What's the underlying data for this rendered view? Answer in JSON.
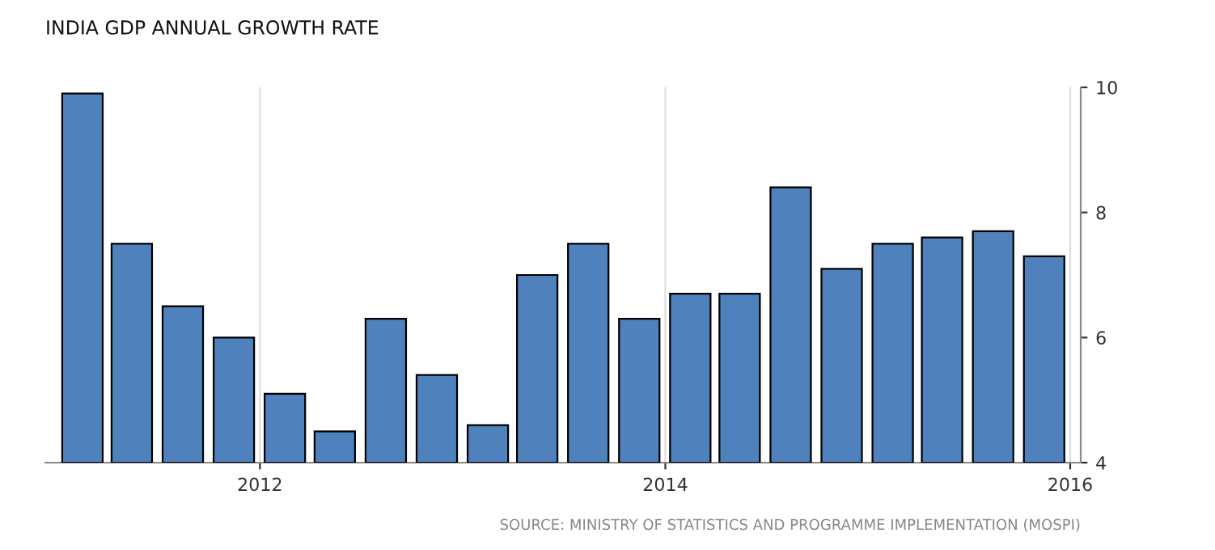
{
  "chart_data": {
    "type": "bar",
    "title": "INDIA GDP ANNUAL GROWTH RATE",
    "x": [
      "2011-02-15",
      "2011-05-15",
      "2011-08-15",
      "2011-11-15",
      "2012-02-15",
      "2012-05-15",
      "2012-08-15",
      "2012-11-15",
      "2013-02-15",
      "2013-05-15",
      "2013-08-15",
      "2013-11-15",
      "2014-02-15",
      "2014-05-15",
      "2014-08-15",
      "2014-11-15",
      "2015-02-15",
      "2015-05-15",
      "2015-08-15",
      "2015-11-15"
    ],
    "values": [
      9.9,
      7.5,
      6.5,
      6.0,
      5.1,
      4.5,
      6.3,
      5.4,
      4.6,
      7.0,
      7.5,
      6.3,
      6.7,
      6.7,
      8.4,
      7.1,
      7.5,
      7.6,
      7.7,
      7.3
    ],
    "color": "#4f81bd",
    "xlim": [
      "2010-12-10",
      "2016-01-20"
    ],
    "xticks": [
      {
        "value": "2012-01-01",
        "label": "2012"
      },
      {
        "value": "2014-01-01",
        "label": "2014"
      },
      {
        "value": "2016-01-01",
        "label": "2016"
      }
    ],
    "ylim": [
      4,
      10
    ],
    "yticks": [
      4,
      6,
      8,
      10
    ],
    "grid": "x",
    "annotations": [
      "SOURCE: MINISTRY OF STATISTICS AND PROGRAMME IMPLEMENTATION (MOSPI)"
    ]
  }
}
